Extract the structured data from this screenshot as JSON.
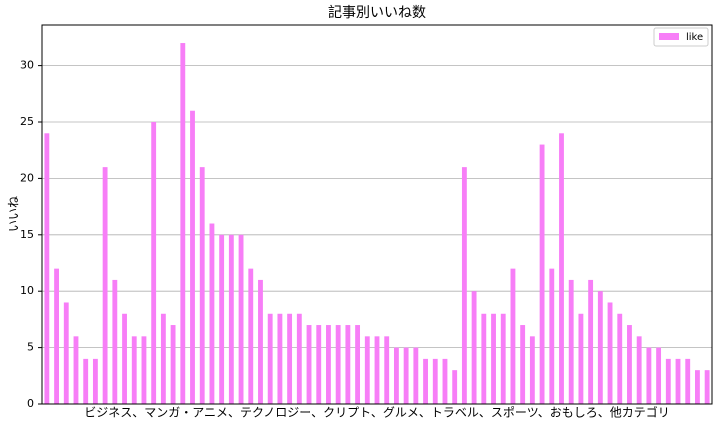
{
  "chart_data": {
    "type": "bar",
    "title": "記事別いいね数",
    "y_label": "いいね",
    "x_label": "ビジネス、マンガ・アニメ、テクノロジー、クリプト、グルメ、トラベル、スポーツ、おもしろ、他カテゴリ",
    "categories": [
      null,
      null,
      null,
      null,
      null,
      null,
      null,
      null,
      null,
      null,
      null,
      null,
      null,
      null,
      null,
      null,
      null,
      null,
      null,
      null,
      null,
      null,
      null,
      null,
      null,
      null,
      null,
      null,
      null,
      null,
      null,
      null,
      null,
      null,
      null,
      null,
      null,
      null,
      null,
      null,
      null,
      null,
      null,
      null,
      null,
      null,
      null,
      null,
      null,
      null,
      null,
      null,
      null,
      null,
      null,
      null,
      null,
      null,
      null,
      null,
      null,
      null,
      null,
      null,
      null,
      null,
      null,
      null,
      null
    ],
    "series": [
      {
        "name": "like",
        "color": "#f77ef7",
        "values": [
          24,
          12,
          9,
          6,
          4,
          4,
          21,
          11,
          8,
          6,
          6,
          25,
          8,
          7,
          32,
          26,
          21,
          16,
          15,
          15,
          15,
          12,
          11,
          8,
          8,
          8,
          8,
          7,
          7,
          7,
          7,
          7,
          7,
          6,
          6,
          6,
          5,
          5,
          5,
          4,
          4,
          4,
          3,
          21,
          10,
          8,
          8,
          8,
          12,
          7,
          6,
          23,
          12,
          24,
          11,
          8,
          11,
          10,
          9,
          8,
          7,
          6,
          5,
          5,
          4,
          4,
          4,
          3,
          3
        ]
      }
    ],
    "ylim": [
      0,
      33.6
    ],
    "yticks": [
      0,
      5,
      10,
      15,
      20,
      25,
      30
    ],
    "grid": true,
    "legend": "upper right"
  }
}
